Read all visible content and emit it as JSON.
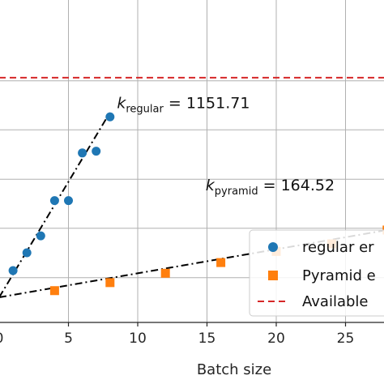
{
  "chart_data": {
    "type": "scatter",
    "xlabel": "Batch size",
    "ylabel": "",
    "title": "",
    "xlim": [
      0,
      28
    ],
    "ylim": [
      0,
      50
    ],
    "x_ticks": [
      0,
      5,
      10,
      15,
      20,
      25
    ],
    "x_tick_labels": [
      "0",
      "5",
      "10",
      "15",
      "20",
      "25"
    ],
    "grid": true,
    "legend_placement": "bottom-right",
    "series": [
      {
        "name": "regular er",
        "marker": "circle",
        "color": "#1f77b4",
        "points": [
          {
            "x": 1,
            "y": 6.0
          },
          {
            "x": 2,
            "y": 10.0
          },
          {
            "x": 3,
            "y": 13.8
          },
          {
            "x": 4,
            "y": 21.7
          },
          {
            "x": 5,
            "y": 21.7
          },
          {
            "x": 6,
            "y": 32.4
          },
          {
            "x": 7,
            "y": 32.8
          },
          {
            "x": 8,
            "y": 40.5
          }
        ]
      },
      {
        "name": "Pyramid e",
        "marker": "square",
        "color": "#ff7f0e",
        "points": [
          {
            "x": 4,
            "y": 1.5
          },
          {
            "x": 8,
            "y": 3.3
          },
          {
            "x": 12,
            "y": 5.4
          },
          {
            "x": 16,
            "y": 7.8
          },
          {
            "x": 20,
            "y": 10.3
          },
          {
            "x": 24,
            "y": 12.0
          },
          {
            "x": 28,
            "y": 15.1
          }
        ]
      }
    ],
    "fit_lines": [
      {
        "from": [
          0,
          0
        ],
        "to": [
          8,
          41.5
        ],
        "color": "#000000",
        "style": "dash-dot"
      },
      {
        "from": [
          0,
          0
        ],
        "to": [
          28,
          15.1
        ],
        "color": "#000000",
        "style": "dash-dot"
      }
    ],
    "hline": {
      "y": 49.3,
      "color": "#d62728",
      "style": "dashed",
      "name": "Available"
    },
    "annotations": [
      {
        "base": "k",
        "sub": "regular",
        "rest": " = 1151.71",
        "x": 8.5,
        "y": 42.5
      },
      {
        "base": "k",
        "sub": "pyramid",
        "rest": " = 164.52",
        "x": 14.9,
        "y": 24.0
      }
    ]
  }
}
